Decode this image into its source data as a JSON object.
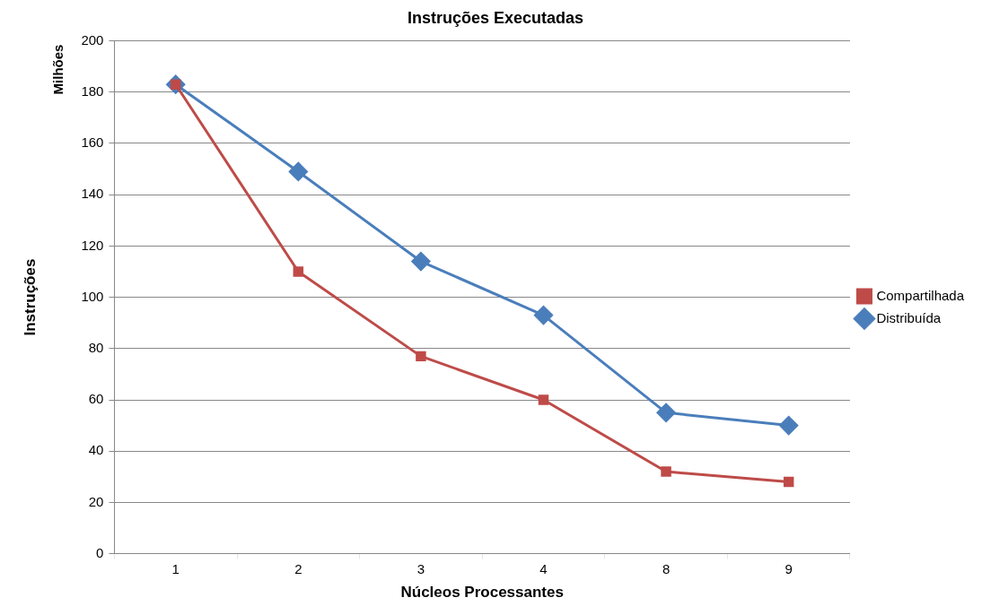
{
  "chart_data": {
    "type": "line",
    "title": "Instruções Executadas",
    "xlabel": "Núcleos Processantes",
    "ylabel": "Instruções",
    "annotations": [
      "Milhões"
    ],
    "categories": [
      "1",
      "2",
      "3",
      "4",
      "8",
      "9"
    ],
    "series": [
      {
        "name": "Compartilhada",
        "color": "#be4b48",
        "marker": "square",
        "values": [
          183,
          110,
          77,
          60,
          32,
          28
        ]
      },
      {
        "name": "Distribuída",
        "color": "#4a7ebb",
        "marker": "diamond",
        "values": [
          183,
          149,
          114,
          93,
          55,
          50
        ]
      }
    ],
    "ylim": [
      0,
      200
    ],
    "yticks": [
      0,
      20,
      40,
      60,
      80,
      100,
      120,
      140,
      160,
      180,
      200
    ],
    "grid": "y",
    "legend": "right",
    "line_style": "solid"
  }
}
